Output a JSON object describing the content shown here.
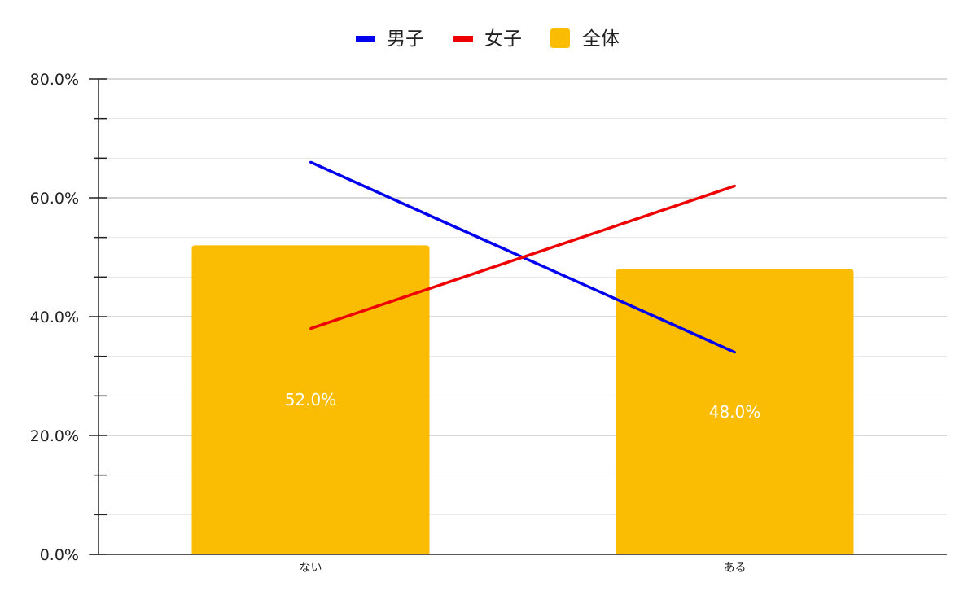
{
  "chart_data": {
    "type": "bar",
    "categories": [
      "ない",
      "ある"
    ],
    "ylim": [
      0,
      80
    ],
    "y_ticks": [
      "0.0%",
      "20.0%",
      "40.0%",
      "60.0%",
      "80.0%"
    ],
    "y_tick_values": [
      0,
      20,
      40,
      60,
      80
    ],
    "grid": true,
    "legend_position": "top",
    "series": [
      {
        "name": "男子",
        "kind": "line",
        "color": "#0000ee",
        "values": [
          66,
          34
        ]
      },
      {
        "name": "女子",
        "kind": "line",
        "color": "#ee0000",
        "values": [
          38,
          62
        ]
      },
      {
        "name": "全体",
        "kind": "bar",
        "color": "#fbbc04",
        "values": [
          52,
          48
        ],
        "labels": [
          "52.0%",
          "48.0%"
        ]
      }
    ]
  }
}
